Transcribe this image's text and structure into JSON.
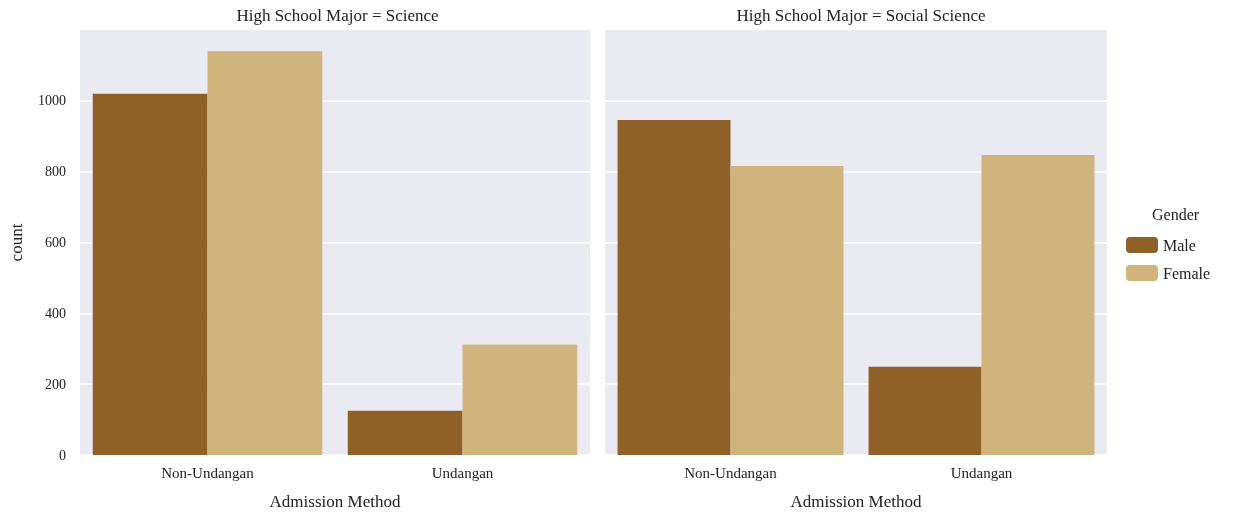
{
  "chart_data": [
    {
      "type": "bar",
      "title": "High School Major = Science",
      "xlabel": "Admission Method",
      "ylabel": "count",
      "categories": [
        "Non-Undangan",
        "Undangan"
      ],
      "series": [
        {
          "color": "#8f6128",
          "values": [
            1020,
            125
          ]
        },
        {
          "color": "#cfb47e",
          "values": [
            1140,
            312
          ]
        }
      ],
      "ylim": [
        0,
        1200
      ],
      "yticks": [
        0,
        200,
        400,
        600,
        800,
        1000
      ],
      "grid": "y",
      "legend": false
    },
    {
      "type": "bar",
      "title": "High School Major = Social Science",
      "xlabel": "Admission Method",
      "categories": [
        "Non-Undangan",
        "Undangan"
      ],
      "series": [
        {
          "name": "Male",
          "color": "#8f6128",
          "values": [
            946,
            249
          ]
        },
        {
          "name": "Female",
          "color": "#cfb47e",
          "values": [
            816,
            847
          ]
        }
      ],
      "ylim": [
        0,
        1200
      ],
      "yticks": [
        0,
        200,
        400,
        600,
        800,
        1000
      ],
      "grid": "y",
      "tick_labels": "x",
      "legend": "right",
      "legend_title": "Gender"
    }
  ]
}
